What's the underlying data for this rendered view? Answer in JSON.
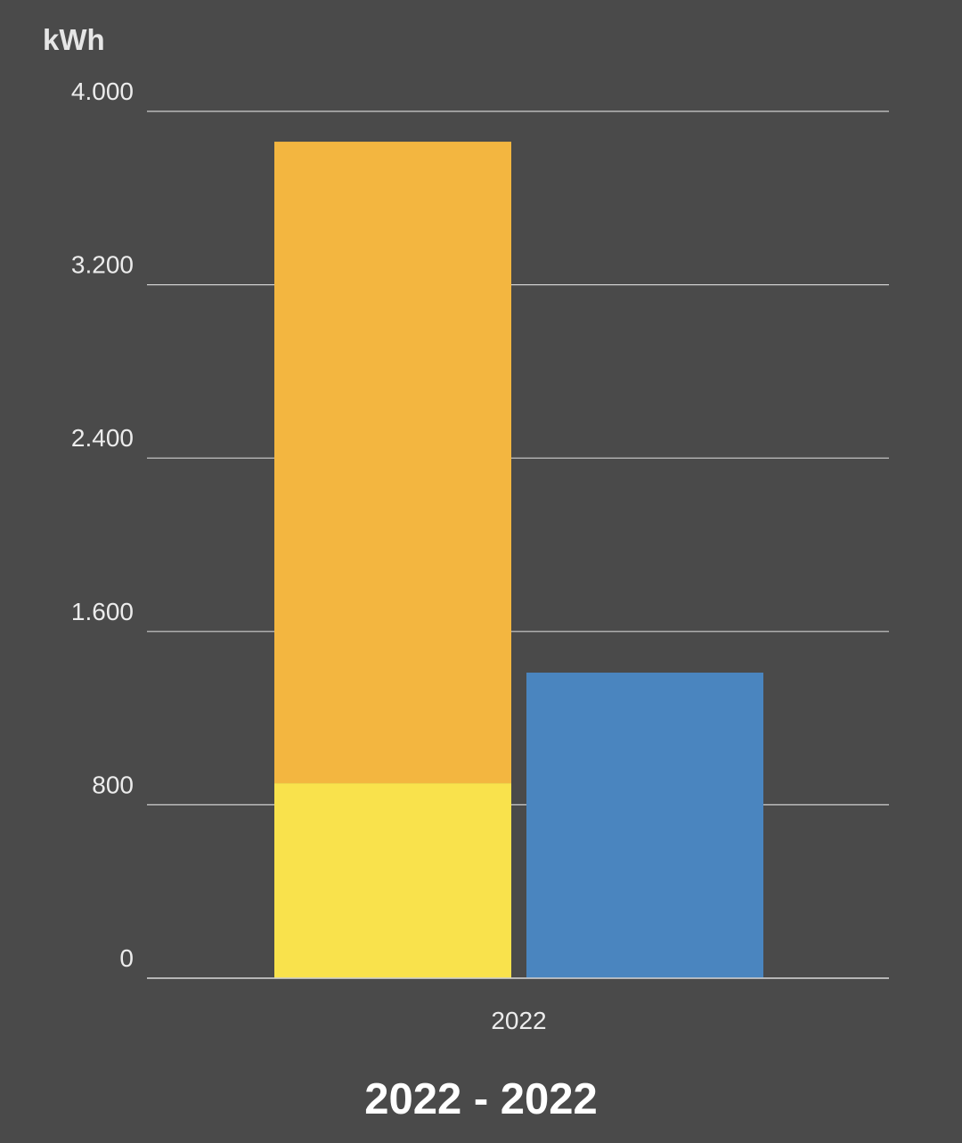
{
  "chart_data": {
    "type": "bar",
    "unit_label": "kWh",
    "categories": [
      "2022"
    ],
    "ylim": [
      0,
      4000
    ],
    "y_ticks": [
      0,
      800,
      1600,
      2400,
      3200,
      4000
    ],
    "y_tick_labels": [
      "0",
      "800",
      "1.600",
      "2.400",
      "3.200",
      "4.000"
    ],
    "grid": true,
    "stacks": [
      {
        "segments": [
          {
            "value": 900,
            "color": "#f9e24c"
          },
          {
            "value": 2960,
            "color": "#f3b640"
          }
        ]
      },
      {
        "segments": [
          {
            "value": 1410,
            "color": "#4a85bf"
          }
        ]
      }
    ]
  },
  "footer": {
    "range_title": "2022 - 2022"
  }
}
